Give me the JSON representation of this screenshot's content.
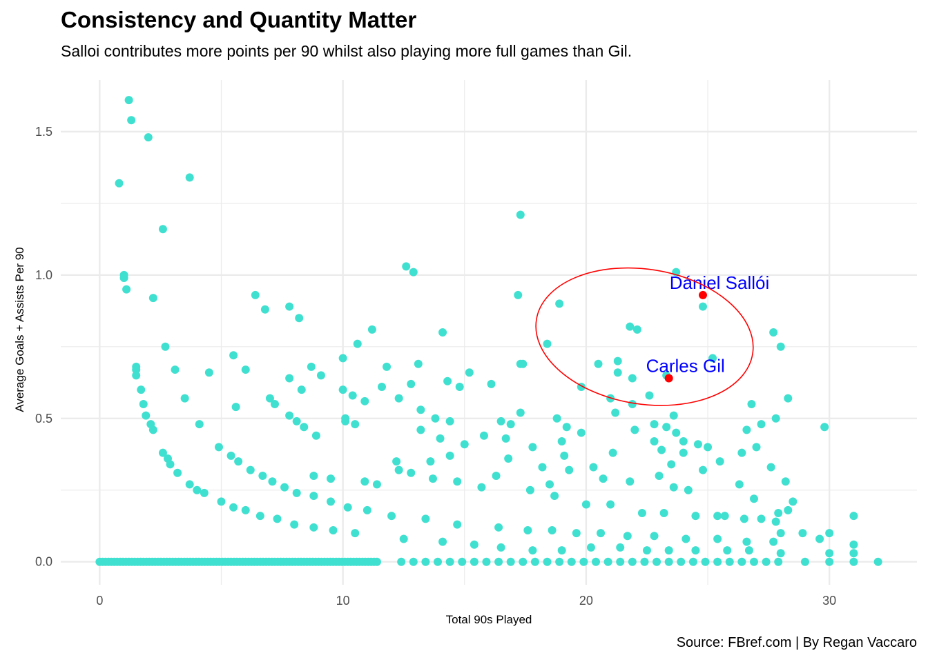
{
  "chart_data": {
    "type": "scatter",
    "title": "Consistency and Quantity Matter",
    "subtitle": "Salloi contributes more points per 90 whilst also playing more full games than Gil.",
    "caption": "Source: FBref.com | By Regan Vaccaro",
    "xlabel": "Total 90s Played",
    "ylabel": "Average Goals + Assists Per 90",
    "xlim": [
      -1.6,
      33.6
    ],
    "ylim": [
      -0.08,
      1.68
    ],
    "x_ticks": [
      0,
      10,
      20,
      30
    ],
    "y_ticks": [
      0.0,
      0.5,
      1.0,
      1.5
    ],
    "x_tick_labels": [
      "0",
      "10",
      "20",
      "30"
    ],
    "y_tick_labels": [
      "0.0",
      "0.5",
      "1.0",
      "1.5"
    ],
    "grid": true,
    "colors": {
      "points": "#40e0d0",
      "highlight": "#ff0000",
      "label": "#0000ff",
      "ellipse": "#ff0000",
      "grid": "#ebebeb"
    },
    "highlighted": [
      {
        "name": "Dániel Sallói",
        "x": 24.8,
        "y": 0.93
      },
      {
        "name": "Carles Gil",
        "x": 23.4,
        "y": 0.64
      }
    ],
    "ellipse": {
      "cx": 22.4,
      "cy": 0.785,
      "rx": 4.5,
      "ry": 0.235,
      "rotation_deg": 9
    },
    "points": [
      [
        1.2,
        1.61
      ],
      [
        1.3,
        1.54
      ],
      [
        2.0,
        1.48
      ],
      [
        0.8,
        1.32
      ],
      [
        3.7,
        1.34
      ],
      [
        2.6,
        1.16
      ],
      [
        1.0,
        1.0
      ],
      [
        1.0,
        0.99
      ],
      [
        1.1,
        0.95
      ],
      [
        2.2,
        0.92
      ],
      [
        2.7,
        0.75
      ],
      [
        1.5,
        0.68
      ],
      [
        1.5,
        0.67
      ],
      [
        1.5,
        0.65
      ],
      [
        3.1,
        0.67
      ],
      [
        1.7,
        0.6
      ],
      [
        1.8,
        0.55
      ],
      [
        3.5,
        0.57
      ],
      [
        1.9,
        0.51
      ],
      [
        2.1,
        0.48
      ],
      [
        2.2,
        0.46
      ],
      [
        4.1,
        0.48
      ],
      [
        4.5,
        0.66
      ],
      [
        5.5,
        0.72
      ],
      [
        5.6,
        0.54
      ],
      [
        6.0,
        0.67
      ],
      [
        6.4,
        0.93
      ],
      [
        6.8,
        0.88
      ],
      [
        7.0,
        0.57
      ],
      [
        7.2,
        0.55
      ],
      [
        7.8,
        0.89
      ],
      [
        8.2,
        0.85
      ],
      [
        7.8,
        0.64
      ],
      [
        8.3,
        0.6
      ],
      [
        7.8,
        0.51
      ],
      [
        8.1,
        0.49
      ],
      [
        8.7,
        0.68
      ],
      [
        9.1,
        0.65
      ],
      [
        8.9,
        0.44
      ],
      [
        8.4,
        0.47
      ],
      [
        10.0,
        0.71
      ],
      [
        10.0,
        0.6
      ],
      [
        10.4,
        0.58
      ],
      [
        10.1,
        0.5
      ],
      [
        10.1,
        0.49
      ],
      [
        10.5,
        0.48
      ],
      [
        10.6,
        0.76
      ],
      [
        11.2,
        0.81
      ],
      [
        10.9,
        0.56
      ],
      [
        11.8,
        0.68
      ],
      [
        11.6,
        0.61
      ],
      [
        12.6,
        1.03
      ],
      [
        12.9,
        1.01
      ],
      [
        13.1,
        0.69
      ],
      [
        12.8,
        0.62
      ],
      [
        12.3,
        0.57
      ],
      [
        13.2,
        0.53
      ],
      [
        13.2,
        0.46
      ],
      [
        13.8,
        0.5
      ],
      [
        14.0,
        0.43
      ],
      [
        14.1,
        0.8
      ],
      [
        14.3,
        0.63
      ],
      [
        14.4,
        0.49
      ],
      [
        14.8,
        0.61
      ],
      [
        15.2,
        0.66
      ],
      [
        16.1,
        0.62
      ],
      [
        17.3,
        1.21
      ],
      [
        17.2,
        0.93
      ],
      [
        17.3,
        0.69
      ],
      [
        17.4,
        0.69
      ],
      [
        17.3,
        0.52
      ],
      [
        18.4,
        0.76
      ],
      [
        18.9,
        0.9
      ],
      [
        18.8,
        0.5
      ],
      [
        19.8,
        0.61
      ],
      [
        20.5,
        0.69
      ],
      [
        21.3,
        0.7
      ],
      [
        21.3,
        0.66
      ],
      [
        21.8,
        0.82
      ],
      [
        22.1,
        0.81
      ],
      [
        21.9,
        0.64
      ],
      [
        22.6,
        0.58
      ],
      [
        23.3,
        0.65
      ],
      [
        23.7,
        1.01
      ],
      [
        24.8,
        0.89
      ],
      [
        25.2,
        0.71
      ],
      [
        27.7,
        0.8
      ],
      [
        28.0,
        0.75
      ],
      [
        21.0,
        0.57
      ],
      [
        21.2,
        0.52
      ],
      [
        21.9,
        0.55
      ],
      [
        22.8,
        0.48
      ],
      [
        23.3,
        0.47
      ],
      [
        23.6,
        0.51
      ],
      [
        25.0,
        0.4
      ],
      [
        26.8,
        0.55
      ],
      [
        27.2,
        0.48
      ],
      [
        27.8,
        0.5
      ],
      [
        28.3,
        0.57
      ],
      [
        29.8,
        0.47
      ],
      [
        26.6,
        0.46
      ],
      [
        26.4,
        0.38
      ],
      [
        27.0,
        0.4
      ],
      [
        27.6,
        0.33
      ],
      [
        26.3,
        0.27
      ],
      [
        26.9,
        0.22
      ],
      [
        28.2,
        0.28
      ],
      [
        28.5,
        0.21
      ],
      [
        27.9,
        0.17
      ],
      [
        27.8,
        0.14
      ],
      [
        15.8,
        0.44
      ],
      [
        16.5,
        0.49
      ],
      [
        16.9,
        0.48
      ],
      [
        16.7,
        0.43
      ],
      [
        16.8,
        0.36
      ],
      [
        17.8,
        0.4
      ],
      [
        18.2,
        0.33
      ],
      [
        18.5,
        0.27
      ],
      [
        19.2,
        0.47
      ],
      [
        19.0,
        0.42
      ],
      [
        19.8,
        0.45
      ],
      [
        19.1,
        0.37
      ],
      [
        20.7,
        0.29
      ],
      [
        21.1,
        0.38
      ],
      [
        22.0,
        0.46
      ],
      [
        21.8,
        0.28
      ],
      [
        23.0,
        0.3
      ],
      [
        23.5,
        0.34
      ],
      [
        24.2,
        0.25
      ],
      [
        24.8,
        0.32
      ],
      [
        25.5,
        0.35
      ],
      [
        24.6,
        0.41
      ],
      [
        24.0,
        0.38
      ],
      [
        23.6,
        0.26
      ],
      [
        4.9,
        0.4
      ],
      [
        5.4,
        0.37
      ],
      [
        5.7,
        0.35
      ],
      [
        6.2,
        0.32
      ],
      [
        6.7,
        0.3
      ],
      [
        7.1,
        0.28
      ],
      [
        7.6,
        0.26
      ],
      [
        8.1,
        0.24
      ],
      [
        8.8,
        0.23
      ],
      [
        9.5,
        0.21
      ],
      [
        10.2,
        0.19
      ],
      [
        11.0,
        0.18
      ],
      [
        12.0,
        0.16
      ],
      [
        13.4,
        0.15
      ],
      [
        14.7,
        0.13
      ],
      [
        16.4,
        0.12
      ],
      [
        17.6,
        0.11
      ],
      [
        18.6,
        0.11
      ],
      [
        19.6,
        0.1
      ],
      [
        20.6,
        0.1
      ],
      [
        21.7,
        0.09
      ],
      [
        22.8,
        0.09
      ],
      [
        24.1,
        0.08
      ],
      [
        25.4,
        0.08
      ],
      [
        26.6,
        0.07
      ],
      [
        27.7,
        0.07
      ],
      [
        28.9,
        0.1
      ],
      [
        29.6,
        0.08
      ],
      [
        30.0,
        0.1
      ],
      [
        31.0,
        0.16
      ],
      [
        31.0,
        0.06
      ],
      [
        31.0,
        0.03
      ],
      [
        30.0,
        0.03
      ],
      [
        2.6,
        0.38
      ],
      [
        2.8,
        0.36
      ],
      [
        2.9,
        0.34
      ],
      [
        3.2,
        0.31
      ],
      [
        3.7,
        0.27
      ],
      [
        4.0,
        0.25
      ],
      [
        4.3,
        0.24
      ],
      [
        5.0,
        0.21
      ],
      [
        5.5,
        0.19
      ],
      [
        6.0,
        0.18
      ],
      [
        6.6,
        0.16
      ],
      [
        7.3,
        0.15
      ],
      [
        8.0,
        0.13
      ],
      [
        8.8,
        0.12
      ],
      [
        9.6,
        0.11
      ],
      [
        10.5,
        0.1
      ],
      [
        12.5,
        0.08
      ],
      [
        14.1,
        0.07
      ],
      [
        15.4,
        0.06
      ],
      [
        16.5,
        0.05
      ],
      [
        17.8,
        0.04
      ],
      [
        19.0,
        0.04
      ],
      [
        20.2,
        0.05
      ],
      [
        21.4,
        0.05
      ],
      [
        22.5,
        0.04
      ],
      [
        23.4,
        0.04
      ],
      [
        24.5,
        0.04
      ],
      [
        25.8,
        0.04
      ],
      [
        26.7,
        0.04
      ],
      [
        28.0,
        0.03
      ],
      [
        12.3,
        0.32
      ],
      [
        12.8,
        0.31
      ],
      [
        13.7,
        0.29
      ],
      [
        14.7,
        0.28
      ],
      [
        15.7,
        0.26
      ],
      [
        16.3,
        0.3
      ],
      [
        17.7,
        0.25
      ],
      [
        18.7,
        0.23
      ],
      [
        20.0,
        0.2
      ],
      [
        21.0,
        0.2
      ],
      [
        22.3,
        0.17
      ],
      [
        23.2,
        0.17
      ],
      [
        24.5,
        0.16
      ],
      [
        25.4,
        0.16
      ],
      [
        26.5,
        0.15
      ],
      [
        15.0,
        0.41
      ],
      [
        14.4,
        0.37
      ],
      [
        13.6,
        0.35
      ],
      [
        12.2,
        0.35
      ],
      [
        11.4,
        0.27
      ],
      [
        10.9,
        0.28
      ],
      [
        9.5,
        0.29
      ],
      [
        8.8,
        0.3
      ],
      [
        19.3,
        0.32
      ],
      [
        20.3,
        0.33
      ],
      [
        22.8,
        0.42
      ],
      [
        24.0,
        0.42
      ],
      [
        23.7,
        0.45
      ],
      [
        23.1,
        0.39
      ],
      [
        25.7,
        0.16
      ],
      [
        27.2,
        0.15
      ],
      [
        28.0,
        0.1
      ],
      [
        28.3,
        0.18
      ]
    ]
  }
}
